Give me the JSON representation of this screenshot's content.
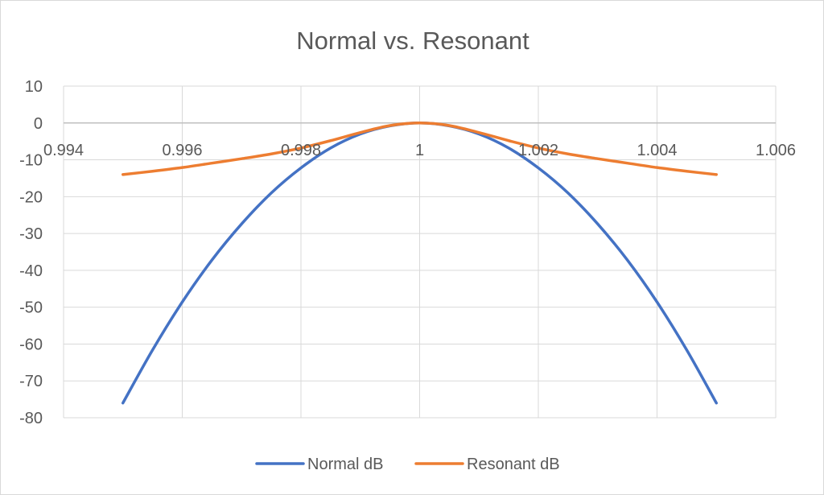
{
  "chart_data": {
    "type": "line",
    "title": "Normal vs. Resonant",
    "xlabel": "",
    "ylabel": "",
    "xlim": [
      0.994,
      1.006
    ],
    "ylim": [
      -80,
      10
    ],
    "x_ticks": [
      "0.994",
      "0.996",
      "0.998",
      "1",
      "1.002",
      "1.004",
      "1.006"
    ],
    "y_ticks": [
      "10",
      "0",
      "-10",
      "-20",
      "-30",
      "-40",
      "-50",
      "-60",
      "-70",
      "-80"
    ],
    "grid": true,
    "legend_position": "bottom",
    "x": [
      0.995,
      0.9955,
      0.996,
      0.9965,
      0.997,
      0.9975,
      0.998,
      0.9985,
      0.999,
      0.9995,
      1.0,
      1.0005,
      1.001,
      1.0015,
      1.002,
      1.0025,
      1.003,
      1.0035,
      1.004,
      1.0045,
      1.005
    ],
    "series": [
      {
        "name": "Normal dB",
        "color": "#4472C4",
        "values": [
          -76,
          -61.6,
          -48.6,
          -37.2,
          -27.4,
          -19,
          -12.2,
          -6.8,
          -3,
          -0.8,
          0,
          -0.8,
          -3,
          -6.8,
          -12.2,
          -19,
          -27.4,
          -37.2,
          -48.6,
          -61.6,
          -76
        ]
      },
      {
        "name": "Resonant dB",
        "color": "#ED7D31",
        "values": [
          -14,
          -13.1,
          -12.1,
          -10.9,
          -9.7,
          -8.4,
          -6.8,
          -4.8,
          -2.6,
          -0.7,
          0,
          -0.7,
          -2.6,
          -4.8,
          -6.8,
          -8.4,
          -9.7,
          -10.9,
          -12.1,
          -13.1,
          -14
        ]
      }
    ]
  }
}
